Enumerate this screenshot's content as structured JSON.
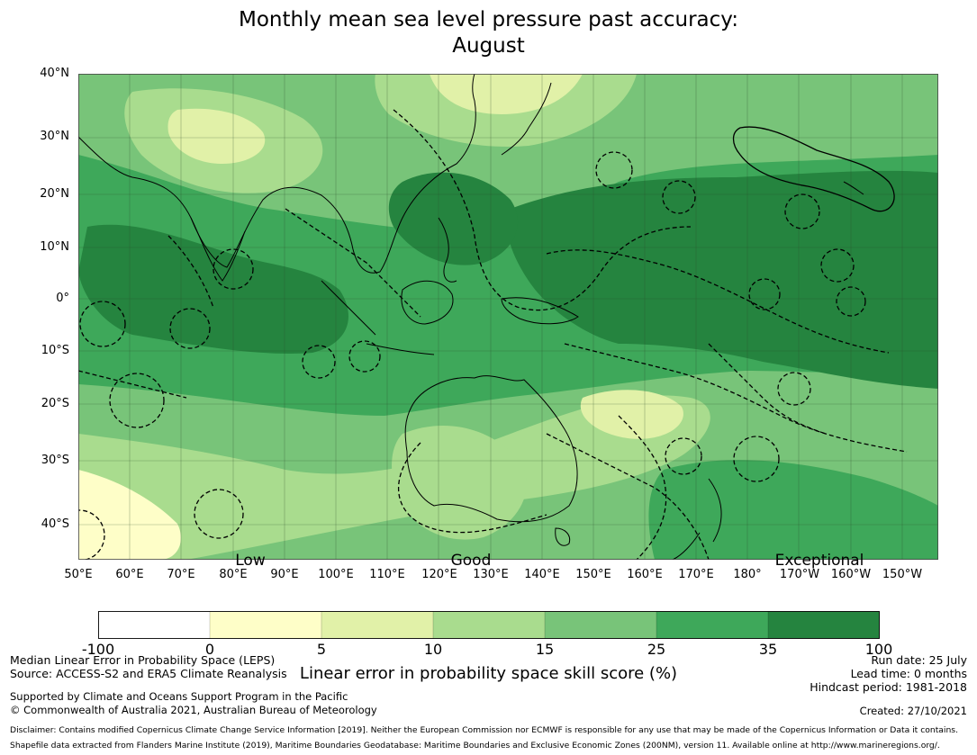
{
  "title_line1": "Monthly mean sea level pressure past accuracy:",
  "title_line2": "August",
  "colors": {
    "low": "#fefec8",
    "c1": "#e1f1a8",
    "c2": "#a9dc8e",
    "c3": "#78c479",
    "c4": "#3ea85a",
    "c5": "#25843f",
    "grid": "#2a4a2a",
    "coast": "#000000"
  },
  "y_ticks": [
    "40°N",
    "30°N",
    "20°N",
    "10°N",
    "0°",
    "10°S",
    "20°S",
    "30°S",
    "40°S"
  ],
  "x_ticks": [
    "50°E",
    "60°E",
    "70°E",
    "80°E",
    "90°E",
    "100°E",
    "110°E",
    "120°E",
    "130°E",
    "140°E",
    "150°E",
    "160°E",
    "170°E",
    "180°",
    "170°W",
    "160°W",
    "150°W"
  ],
  "skill_labels": [
    "Low",
    "Good",
    "Exceptional"
  ],
  "colorbar": {
    "ticks": [
      "-100",
      "0",
      "5",
      "10",
      "15",
      "25",
      "35",
      "100"
    ],
    "label": "Linear error in probability space skill score (%)"
  },
  "footer": {
    "left1": "Median Linear Error in Probability Space (LEPS)",
    "left2": "Source: ACCESS-S2 and ERA5 Climate Reanalysis",
    "left3": "Supported by Climate and Oceans Support Program in the Pacific",
    "left4": "© Commonwealth of Australia 2021, Australian Bureau of Meteorology",
    "right1": "Run date: 25 July",
    "right2": "Lead time: 0 months",
    "right3": "Hindcast period: 1981-2018",
    "right4": "Created: 27/10/2021",
    "disclaimer": "Disclaimer: Contains modified Copernicus Climate Change Service Information [2019]. Neither the European Commission nor ECMWF is responsible for any use that may be made of the Copernicus Information or Data it contains.",
    "shapefile": "Shapefile data extracted from Flanders Marine Institute (2019), Maritime Boundaries Geodatabase: Maritime Boundaries and Exclusive Economic Zones (200NM), version 11. Available online at http://www.marineregions.org/."
  }
}
